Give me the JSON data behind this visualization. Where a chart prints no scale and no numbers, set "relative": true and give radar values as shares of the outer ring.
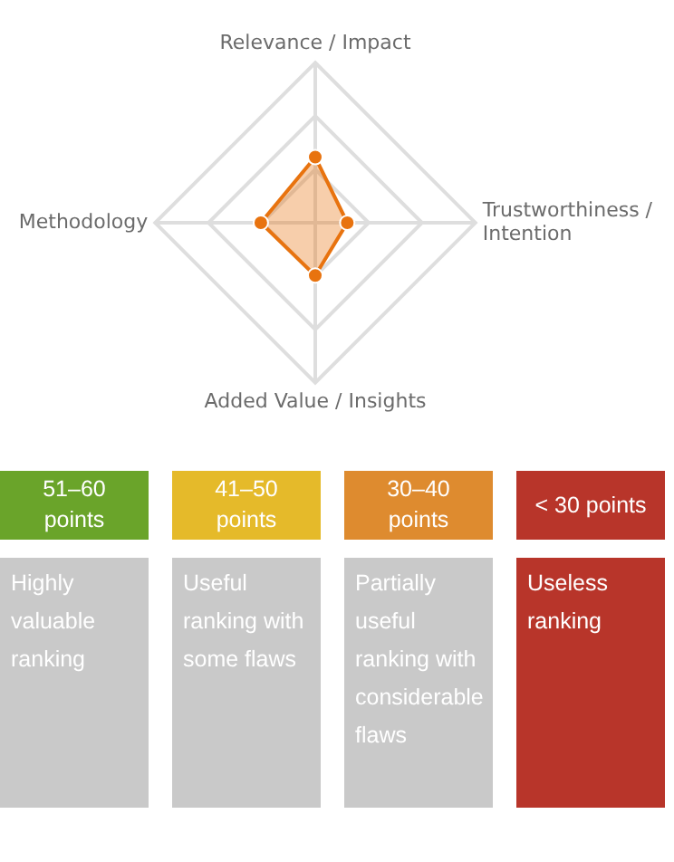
{
  "chart_data": [
    {
      "type": "radar",
      "relative": true,
      "grid": true,
      "legend": false,
      "marker": "circle",
      "categories": [
        "Relevance / Impact",
        "Trustworthiness / Intention",
        "Added Value / Insights",
        "Methodology"
      ],
      "series": [
        {
          "color": "#e8730f",
          "values": [
            0.41,
            0.2,
            0.33,
            0.34
          ]
        }
      ]
    },
    {
      "type": "other",
      "categories": [
        "51–60 points",
        "41–50 points",
        "30–40 points",
        "< 30 points"
      ],
      "colors": [
        "#6aa42a",
        "#e5ba2a",
        "#de8b2f",
        "#b8352a"
      ],
      "annotations": [
        "Highly valuable ranking",
        "Useful ranking with some flaws",
        "Partially useful ranking with considerable flaws",
        "Useless ranking"
      ]
    }
  ]
}
